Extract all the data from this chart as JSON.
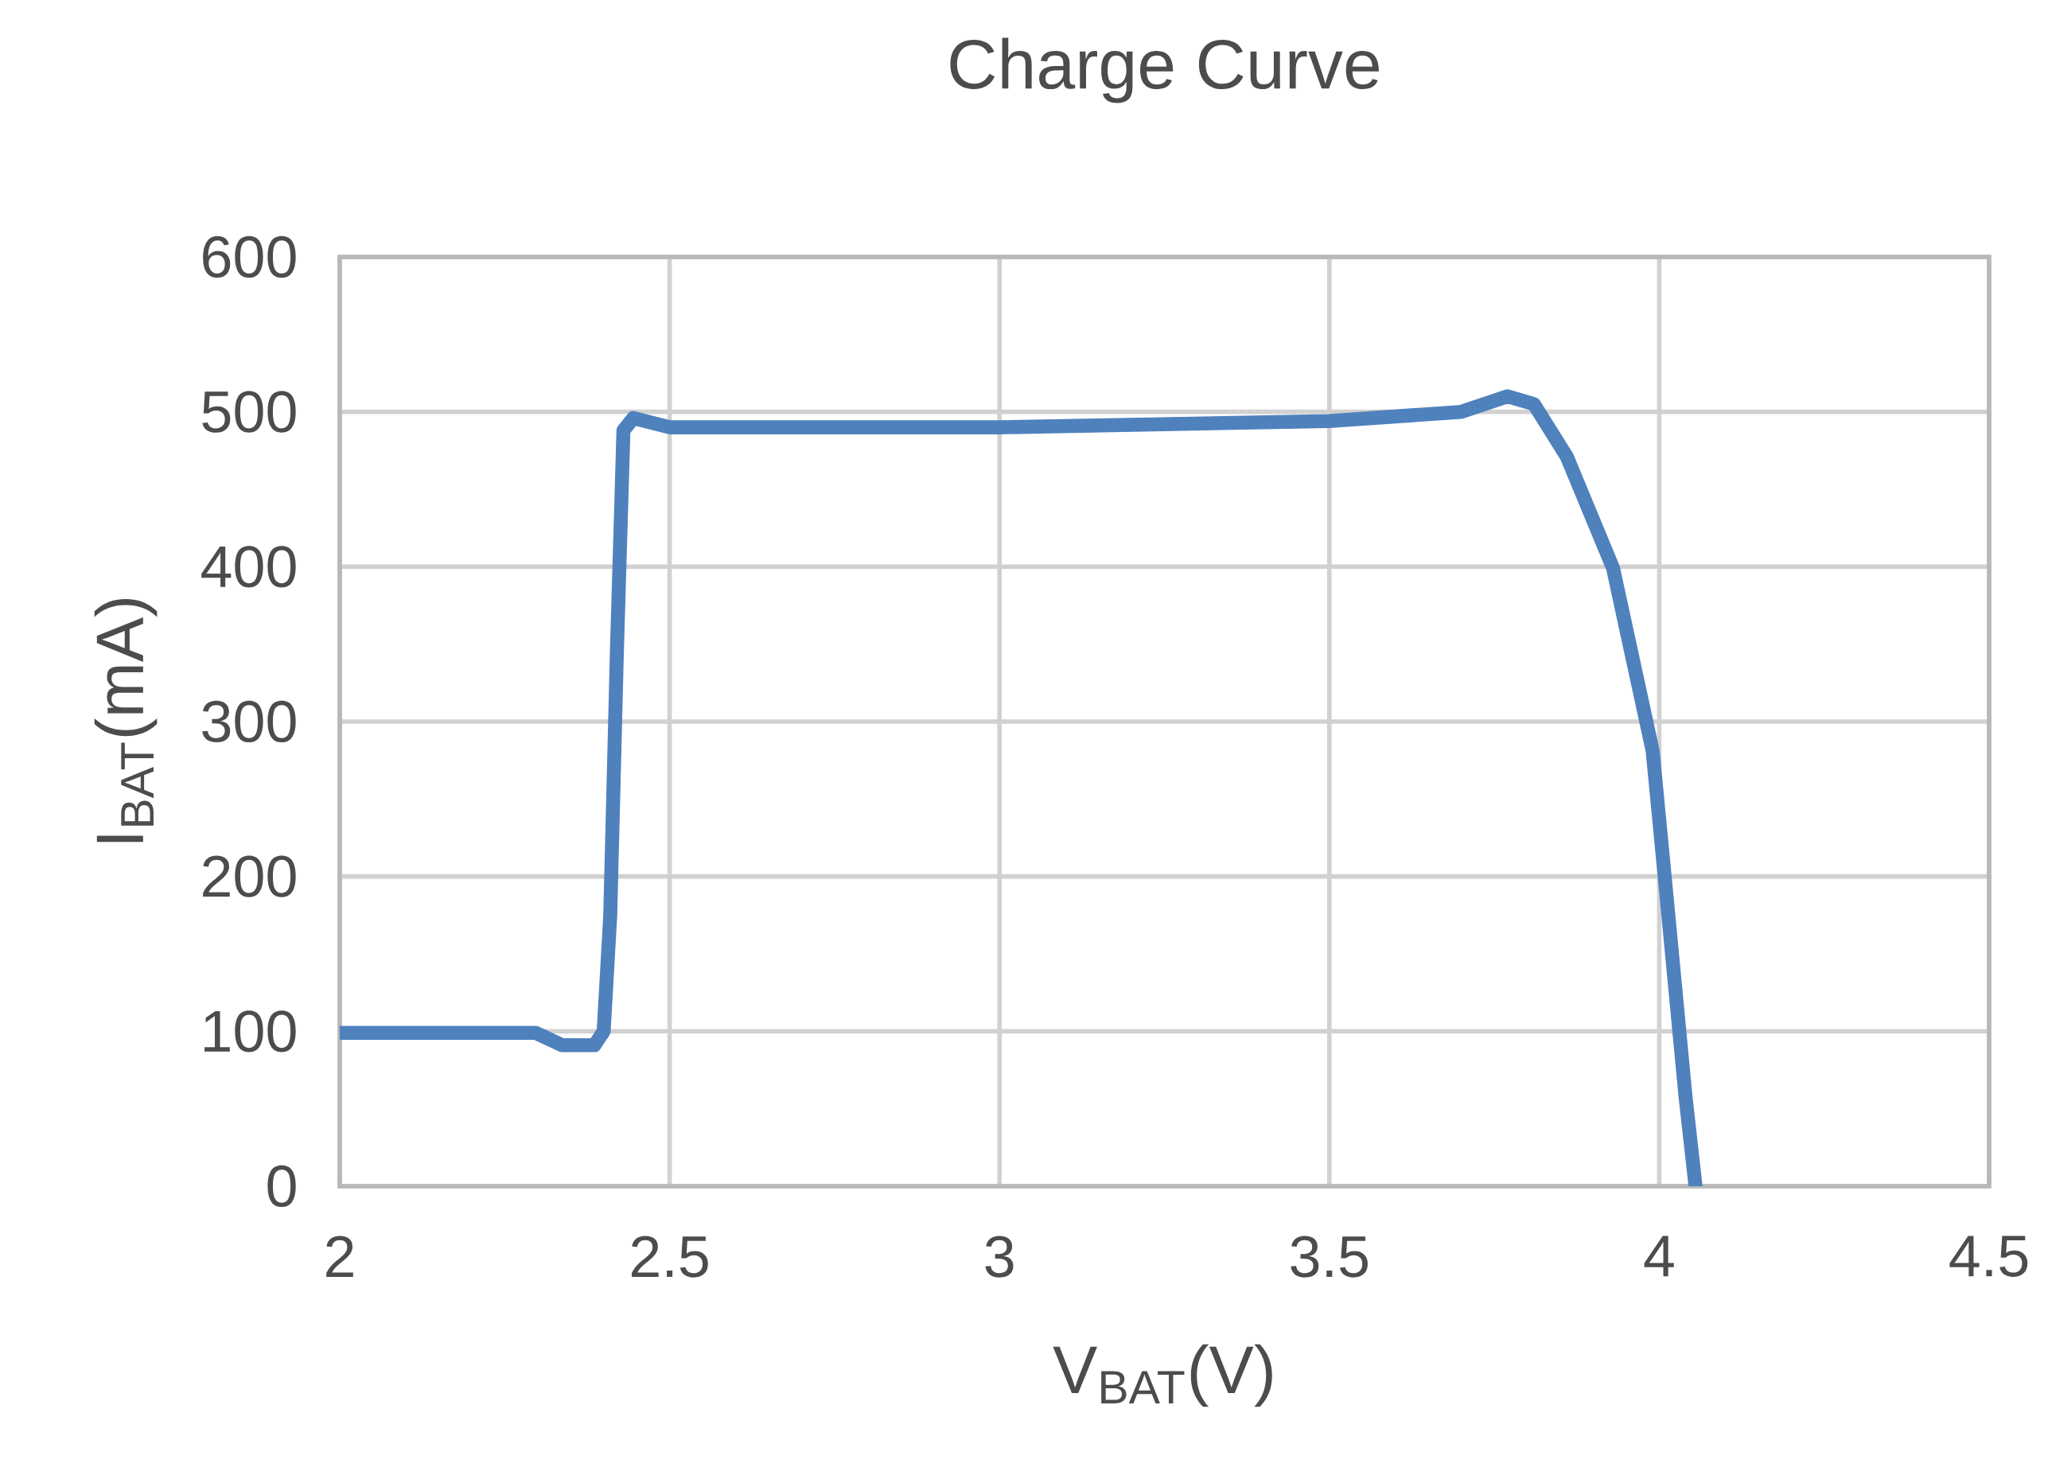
{
  "chart_data": {
    "type": "line",
    "title": "Charge Curve",
    "xlabel": "V$_{BAT}$(V)",
    "ylabel": "I$_{BAT}$(mA)",
    "x": [
      2,
      2.297,
      2.337,
      2.386,
      2.4,
      2.41,
      2.42,
      2.43,
      2.445,
      2.5,
      3.0,
      3.5,
      3.7,
      3.77,
      3.81,
      3.86,
      3.93,
      3.99,
      4.01,
      4.04,
      4.055
    ],
    "series": [
      {
        "color": "#4f81bd",
        "values": [
          99,
          99,
          91,
          91,
          100,
          175,
          344,
          488,
          496,
          490,
          490,
          494,
          500,
          510,
          505,
          471,
          399,
          281,
          192,
          57,
          0
        ]
      }
    ],
    "xlim": [
      2,
      4.5
    ],
    "ylim": [
      0,
      600
    ],
    "xticks": [
      2,
      2.5,
      3,
      3.5,
      4,
      4.5
    ],
    "yticks": [
      0,
      100,
      200,
      300,
      400,
      500,
      600
    ],
    "grid": true
  }
}
